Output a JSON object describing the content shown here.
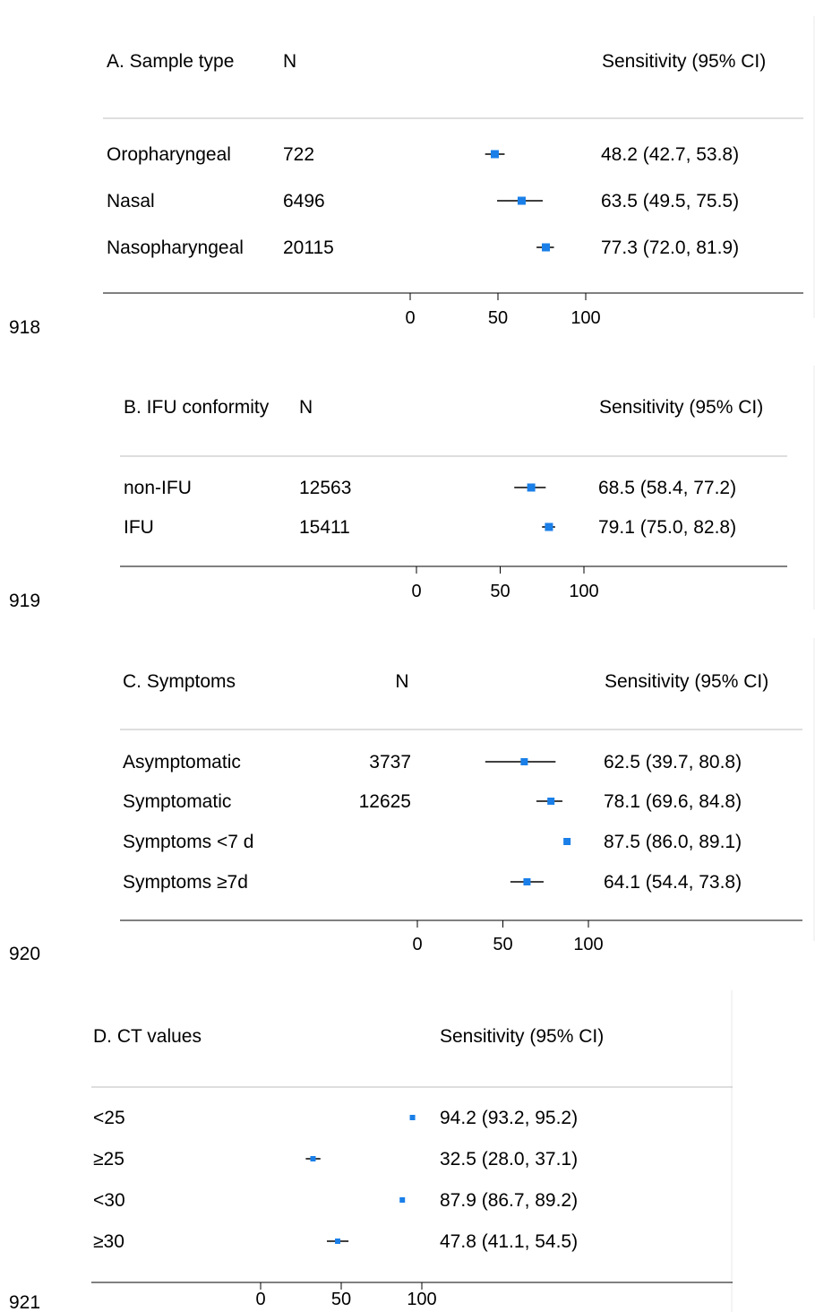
{
  "line_numbers": [
    "918",
    "919",
    "920",
    "921"
  ],
  "chart_data": [
    {
      "type": "forest",
      "title": "A. Sample type",
      "n_header": "N",
      "est_header": "Sensitivity (95% CI)",
      "xlim": [
        0,
        100
      ],
      "ticks": [
        0,
        50,
        100
      ],
      "rows": [
        {
          "label": "Oropharyngeal",
          "n": "722",
          "est": 48.2,
          "lo": 42.7,
          "hi": 53.8,
          "text": "48.2 (42.7, 53.8)"
        },
        {
          "label": "Nasal",
          "n": "6496",
          "est": 63.5,
          "lo": 49.5,
          "hi": 75.5,
          "text": "63.5 (49.5, 75.5)"
        },
        {
          "label": "Nasopharyngeal",
          "n": "20115",
          "est": 77.3,
          "lo": 72.0,
          "hi": 81.9,
          "text": "77.3 (72.0, 81.9)"
        }
      ]
    },
    {
      "type": "forest",
      "title": "B. IFU conformity",
      "n_header": "N",
      "est_header": "Sensitivity (95% CI)",
      "xlim": [
        0,
        100
      ],
      "ticks": [
        0,
        50,
        100
      ],
      "rows": [
        {
          "label": "non-IFU",
          "n": "12563",
          "est": 68.5,
          "lo": 58.4,
          "hi": 77.2,
          "text": "68.5 (58.4, 77.2)"
        },
        {
          "label": "IFU",
          "n": "15411",
          "est": 79.1,
          "lo": 75.0,
          "hi": 82.8,
          "text": "79.1 (75.0, 82.8)"
        }
      ]
    },
    {
      "type": "forest",
      "title": "C. Symptoms",
      "n_header": "N",
      "est_header": "Sensitivity (95% CI)",
      "xlim": [
        0,
        100
      ],
      "ticks": [
        0,
        50,
        100
      ],
      "rows": [
        {
          "label": "Asymptomatic",
          "n": "3737",
          "est": 62.5,
          "lo": 39.7,
          "hi": 80.8,
          "text": "62.5 (39.7, 80.8)"
        },
        {
          "label": "Symptomatic",
          "n": "12625",
          "est": 78.1,
          "lo": 69.6,
          "hi": 84.8,
          "text": "78.1 (69.6, 84.8)"
        },
        {
          "label": "Symptoms <7 d",
          "n": "",
          "est": 87.5,
          "lo": 86.0,
          "hi": 89.1,
          "text": "87.5 (86.0, 89.1)"
        },
        {
          "label": "Symptoms ≥7d",
          "n": "",
          "est": 64.1,
          "lo": 54.4,
          "hi": 73.8,
          "text": "64.1 (54.4, 73.8)"
        }
      ]
    },
    {
      "type": "forest",
      "title": "D. CT values",
      "n_header": "",
      "est_header": "Sensitivity (95% CI)",
      "xlim": [
        0,
        100
      ],
      "ticks": [
        0,
        50,
        100
      ],
      "rows": [
        {
          "label": "<25",
          "n": "",
          "est": 94.2,
          "lo": 93.2,
          "hi": 95.2,
          "text": "94.2 (93.2, 95.2)"
        },
        {
          "label": "≥25",
          "n": "",
          "est": 32.5,
          "lo": 28.0,
          "hi": 37.1,
          "text": "32.5 (28.0, 37.1)"
        },
        {
          "label": "<30",
          "n": "",
          "est": 87.9,
          "lo": 86.7,
          "hi": 89.2,
          "text": "87.9 (86.7, 89.2)"
        },
        {
          "label": "≥30",
          "n": "",
          "est": 47.8,
          "lo": 41.1,
          "hi": 54.5,
          "text": "47.8 (41.1, 54.5)"
        }
      ]
    }
  ],
  "colors": {
    "marker": "#1a7fe8",
    "ci_line": "#000000",
    "separator": "#bdbdbd"
  }
}
